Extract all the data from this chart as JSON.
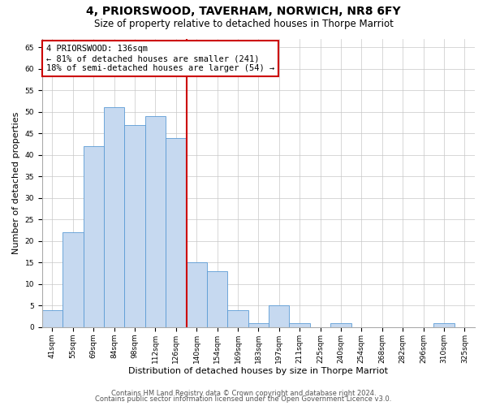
{
  "title": "4, PRIORSWOOD, TAVERHAM, NORWICH, NR8 6FY",
  "subtitle": "Size of property relative to detached houses in Thorpe Marriot",
  "xlabel": "Distribution of detached houses by size in Thorpe Marriot",
  "ylabel": "Number of detached properties",
  "bin_labels": [
    "41sqm",
    "55sqm",
    "69sqm",
    "84sqm",
    "98sqm",
    "112sqm",
    "126sqm",
    "140sqm",
    "154sqm",
    "169sqm",
    "183sqm",
    "197sqm",
    "211sqm",
    "225sqm",
    "240sqm",
    "254sqm",
    "268sqm",
    "282sqm",
    "296sqm",
    "310sqm",
    "325sqm"
  ],
  "bar_heights": [
    4,
    22,
    42,
    51,
    47,
    49,
    44,
    15,
    13,
    4,
    1,
    5,
    1,
    0,
    1,
    0,
    0,
    0,
    0,
    1,
    0
  ],
  "bar_color": "#c6d9f0",
  "bar_edge_color": "#5b9bd5",
  "vline_pos": 7.5,
  "vline_color": "#cc0000",
  "annotation_line1": "4 PRIORSWOOD: 136sqm",
  "annotation_line2": "← 81% of detached houses are smaller (241)",
  "annotation_line3": "18% of semi-detached houses are larger (54) →",
  "annotation_box_color": "#ffffff",
  "annotation_box_edge": "#cc0000",
  "ylim": [
    0,
    67
  ],
  "yticks": [
    0,
    5,
    10,
    15,
    20,
    25,
    30,
    35,
    40,
    45,
    50,
    55,
    60,
    65
  ],
  "footer1": "Contains HM Land Registry data © Crown copyright and database right 2024.",
  "footer2": "Contains public sector information licensed under the Open Government Licence v3.0.",
  "background_color": "#ffffff",
  "grid_color": "#c8c8c8",
  "title_fontsize": 10,
  "subtitle_fontsize": 8.5,
  "tick_fontsize": 6.5,
  "ylabel_fontsize": 8,
  "xlabel_fontsize": 8,
  "annotation_fontsize": 7.5,
  "footer_fontsize": 6
}
